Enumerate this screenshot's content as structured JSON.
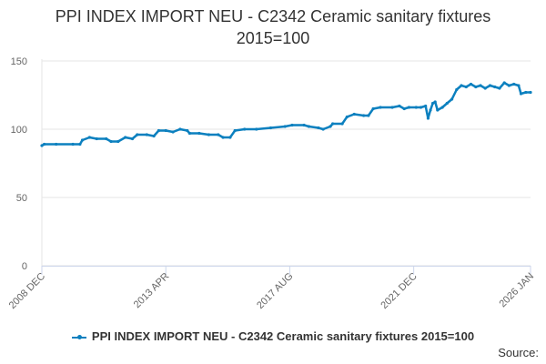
{
  "title_line1": "PPI INDEX IMPORT NEU - C2342 Ceramic sanitary fixtures",
  "title_line2": "2015=100",
  "source_label": "Source:",
  "colors": {
    "series": "#0c80bf",
    "grid": "#e6e6e6",
    "axis": "#ccd6eb",
    "text": "#666666"
  },
  "chart_data": {
    "type": "line",
    "title": "PPI INDEX IMPORT NEU - C2342 Ceramic sanitary fixtures 2015=100",
    "xlabel": "",
    "ylabel": "",
    "x_range": [
      "2008-12",
      "2026-01"
    ],
    "ylim": [
      0,
      150
    ],
    "y_ticks": [
      0,
      50,
      100,
      150
    ],
    "x_tick_labels": [
      {
        "label": "2008 DEC",
        "date": "2008-12"
      },
      {
        "label": "2013 APR",
        "date": "2013-04"
      },
      {
        "label": "2017 AUG",
        "date": "2017-08"
      },
      {
        "label": "2021 DEC",
        "date": "2021-12"
      },
      {
        "label": "2026 JAN",
        "date": "2026-01"
      }
    ],
    "grid": true,
    "legend_position": "bottom",
    "series": [
      {
        "name": "PPI INDEX IMPORT NEU - C2342 Ceramic sanitary fixtures 2015=100",
        "points": [
          [
            "2008-12",
            88
          ],
          [
            "2009-01",
            89
          ],
          [
            "2009-06",
            89
          ],
          [
            "2010-01",
            89
          ],
          [
            "2010-04",
            89
          ],
          [
            "2010-05",
            92
          ],
          [
            "2010-08",
            94
          ],
          [
            "2010-11",
            93
          ],
          [
            "2011-03",
            93
          ],
          [
            "2011-05",
            91
          ],
          [
            "2011-08",
            91
          ],
          [
            "2011-11",
            94
          ],
          [
            "2012-02",
            93
          ],
          [
            "2012-04",
            96
          ],
          [
            "2012-08",
            96
          ],
          [
            "2012-11",
            95
          ],
          [
            "2013-01",
            99
          ],
          [
            "2013-04",
            99
          ],
          [
            "2013-07",
            98
          ],
          [
            "2013-10",
            100
          ],
          [
            "2014-01",
            99
          ],
          [
            "2014-02",
            97
          ],
          [
            "2014-06",
            97
          ],
          [
            "2014-10",
            96
          ],
          [
            "2015-02",
            96
          ],
          [
            "2015-04",
            94
          ],
          [
            "2015-07",
            94
          ],
          [
            "2015-09",
            99
          ],
          [
            "2016-01",
            100
          ],
          [
            "2016-06",
            100
          ],
          [
            "2016-12",
            101
          ],
          [
            "2017-06",
            102
          ],
          [
            "2017-09",
            103
          ],
          [
            "2018-02",
            103
          ],
          [
            "2018-04",
            102
          ],
          [
            "2018-08",
            101
          ],
          [
            "2018-10",
            100
          ],
          [
            "2019-01",
            102
          ],
          [
            "2019-02",
            104
          ],
          [
            "2019-06",
            104
          ],
          [
            "2019-08",
            109
          ],
          [
            "2019-11",
            111
          ],
          [
            "2020-03",
            110
          ],
          [
            "2020-05",
            110
          ],
          [
            "2020-07",
            115
          ],
          [
            "2020-10",
            116
          ],
          [
            "2021-03",
            116
          ],
          [
            "2021-06",
            117
          ],
          [
            "2021-08",
            115
          ],
          [
            "2021-10",
            116
          ],
          [
            "2022-01",
            116
          ],
          [
            "2022-03",
            116
          ],
          [
            "2022-05",
            117
          ],
          [
            "2022-06",
            108
          ],
          [
            "2022-07",
            114
          ],
          [
            "2022-08",
            119
          ],
          [
            "2022-09",
            120
          ],
          [
            "2022-10",
            114
          ],
          [
            "2022-12",
            116
          ],
          [
            "2023-02",
            119
          ],
          [
            "2023-04",
            122
          ],
          [
            "2023-06",
            129
          ],
          [
            "2023-08",
            132
          ],
          [
            "2023-10",
            131
          ],
          [
            "2023-12",
            133
          ],
          [
            "2024-02",
            131
          ],
          [
            "2024-04",
            132
          ],
          [
            "2024-06",
            130
          ],
          [
            "2024-08",
            132
          ],
          [
            "2024-10",
            131
          ],
          [
            "2024-12",
            130
          ],
          [
            "2025-02",
            134
          ],
          [
            "2025-04",
            132
          ],
          [
            "2025-06",
            133
          ],
          [
            "2025-08",
            132
          ],
          [
            "2025-09",
            126
          ],
          [
            "2025-11",
            127
          ],
          [
            "2026-01",
            127
          ]
        ]
      }
    ]
  }
}
